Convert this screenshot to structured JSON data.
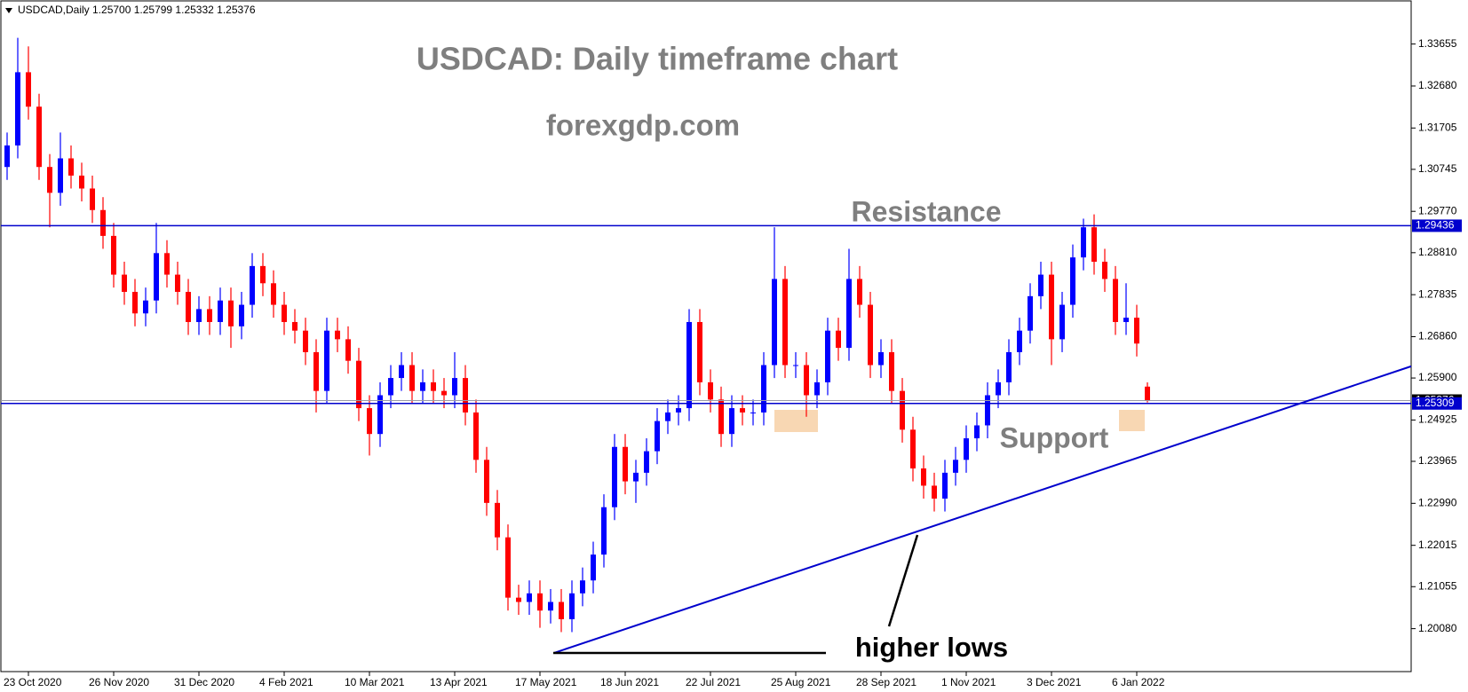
{
  "chart_data": {
    "type": "candlestick",
    "header": "USDCAD,Daily  1.25700 1.25799 1.25332 1.25376",
    "title": "USDCAD: Daily timeframe chart",
    "subtitle": "forexgdp.com",
    "annotations": {
      "resistance": "Resistance",
      "support": "Support",
      "trend": "higher lows"
    },
    "categories": [
      null,
      null,
      "23 Oct 2020",
      null,
      null,
      null,
      null,
      null,
      null,
      null,
      "26 Nov 2020",
      null,
      null,
      null,
      null,
      null,
      null,
      null,
      "31 Dec 2020",
      null,
      null,
      null,
      null,
      null,
      null,
      null,
      "4 Feb 2021",
      null,
      null,
      null,
      null,
      null,
      null,
      null,
      "10 Mar 2021",
      null,
      null,
      null,
      null,
      null,
      null,
      null,
      "13 Apr 2021",
      null,
      null,
      null,
      null,
      null,
      null,
      null,
      "17 May 2021",
      null,
      null,
      null,
      null,
      null,
      null,
      null,
      "18 Jun 2021",
      null,
      null,
      null,
      null,
      null,
      null,
      null,
      "22 Jul 2021",
      null,
      null,
      null,
      null,
      null,
      null,
      null,
      "25 Aug 2021",
      null,
      null,
      null,
      null,
      null,
      null,
      null,
      "28 Sep 2021",
      null,
      null,
      null,
      null,
      null,
      null,
      null,
      "1 Nov 2021",
      null,
      null,
      null,
      null,
      null,
      null,
      null,
      "3 Dec 2021",
      null,
      null,
      null,
      null,
      null,
      null,
      null,
      "6 Jan 2022",
      null
    ],
    "open": [
      1.308,
      1.313,
      1.33,
      1.322,
      1.308,
      1.302,
      1.31,
      1.306,
      1.303,
      1.298,
      1.292,
      1.283,
      1.279,
      1.274,
      1.277,
      1.288,
      1.283,
      1.279,
      1.272,
      1.275,
      1.272,
      1.277,
      1.271,
      1.276,
      1.285,
      1.281,
      1.276,
      1.272,
      1.27,
      1.265,
      1.256,
      1.27,
      1.268,
      1.263,
      1.252,
      1.246,
      1.255,
      1.259,
      1.262,
      1.256,
      1.258,
      1.256,
      1.255,
      1.259,
      1.251,
      1.24,
      1.23,
      1.222,
      1.208,
      1.207,
      1.209,
      1.205,
      1.207,
      1.203,
      1.209,
      1.212,
      1.218,
      1.229,
      1.243,
      1.235,
      1.237,
      1.242,
      1.249,
      1.251,
      1.252,
      1.272,
      1.258,
      1.254,
      1.246,
      1.252,
      1.251,
      1.251,
      1.262,
      1.282,
      1.262,
      1.262,
      1.255,
      1.258,
      1.27,
      1.266,
      1.282,
      1.276,
      1.262,
      1.265,
      1.256,
      1.247,
      1.238,
      1.234,
      1.231,
      1.237,
      1.24,
      1.245,
      1.248,
      1.255,
      1.258,
      1.265,
      1.27,
      1.278,
      1.283,
      1.268,
      1.276,
      1.287,
      1.294,
      1.286,
      1.282,
      1.272,
      1.273,
      1.257
    ],
    "high": [
      1.316,
      1.338,
      1.336,
      1.325,
      1.311,
      1.316,
      1.313,
      1.309,
      1.306,
      1.301,
      1.295,
      1.286,
      1.282,
      1.28,
      1.295,
      1.291,
      1.286,
      1.282,
      1.278,
      1.278,
      1.28,
      1.28,
      1.279,
      1.288,
      1.288,
      1.284,
      1.279,
      1.275,
      1.273,
      1.268,
      1.273,
      1.273,
      1.271,
      1.266,
      1.255,
      1.258,
      1.262,
      1.265,
      1.265,
      1.261,
      1.261,
      1.259,
      1.265,
      1.262,
      1.254,
      1.243,
      1.233,
      1.225,
      1.211,
      1.212,
      1.212,
      1.21,
      1.21,
      1.212,
      1.215,
      1.221,
      1.232,
      1.246,
      1.246,
      1.24,
      1.245,
      1.252,
      1.254,
      1.255,
      1.275,
      1.275,
      1.261,
      1.257,
      1.255,
      1.255,
      1.254,
      1.265,
      1.294,
      1.285,
      1.265,
      1.265,
      1.261,
      1.273,
      1.273,
      1.289,
      1.285,
      1.279,
      1.268,
      1.268,
      1.259,
      1.25,
      1.241,
      1.237,
      1.24,
      1.243,
      1.248,
      1.251,
      1.258,
      1.261,
      1.268,
      1.273,
      1.281,
      1.286,
      1.286,
      1.279,
      1.29,
      1.296,
      1.297,
      1.289,
      1.285,
      1.281,
      1.276,
      1.25799
    ],
    "low": [
      1.305,
      1.31,
      1.319,
      1.305,
      1.294,
      1.299,
      1.303,
      1.3,
      1.295,
      1.289,
      1.28,
      1.276,
      1.271,
      1.271,
      1.274,
      1.28,
      1.276,
      1.269,
      1.269,
      1.269,
      1.269,
      1.266,
      1.268,
      1.273,
      1.278,
      1.273,
      1.269,
      1.267,
      1.262,
      1.251,
      1.253,
      1.265,
      1.26,
      1.249,
      1.241,
      1.243,
      1.252,
      1.256,
      1.253,
      1.253,
      1.253,
      1.252,
      1.252,
      1.248,
      1.237,
      1.227,
      1.219,
      1.205,
      1.204,
      1.204,
      1.201,
      1.202,
      1.2,
      1.2,
      1.206,
      1.209,
      1.215,
      1.226,
      1.232,
      1.23,
      1.234,
      1.239,
      1.246,
      1.248,
      1.249,
      1.255,
      1.251,
      1.243,
      1.243,
      1.248,
      1.248,
      1.248,
      1.259,
      1.259,
      1.259,
      1.25,
      1.252,
      1.255,
      1.263,
      1.263,
      1.273,
      1.259,
      1.259,
      1.253,
      1.244,
      1.235,
      1.231,
      1.228,
      1.228,
      1.234,
      1.237,
      1.242,
      1.245,
      1.252,
      1.255,
      1.262,
      1.267,
      1.275,
      1.262,
      1.265,
      1.273,
      1.284,
      1.283,
      1.279,
      1.269,
      1.269,
      1.264,
      1.25332
    ],
    "close": [
      1.313,
      1.33,
      1.322,
      1.308,
      1.302,
      1.31,
      1.306,
      1.303,
      1.298,
      1.292,
      1.283,
      1.279,
      1.274,
      1.277,
      1.288,
      1.283,
      1.279,
      1.272,
      1.275,
      1.272,
      1.277,
      1.271,
      1.276,
      1.285,
      1.281,
      1.276,
      1.272,
      1.27,
      1.265,
      1.256,
      1.27,
      1.268,
      1.263,
      1.252,
      1.246,
      1.255,
      1.259,
      1.262,
      1.256,
      1.258,
      1.256,
      1.255,
      1.259,
      1.251,
      1.24,
      1.23,
      1.222,
      1.208,
      1.207,
      1.209,
      1.205,
      1.207,
      1.203,
      1.209,
      1.212,
      1.218,
      1.229,
      1.243,
      1.235,
      1.237,
      1.242,
      1.249,
      1.251,
      1.252,
      1.272,
      1.258,
      1.254,
      1.246,
      1.252,
      1.251,
      1.251,
      1.262,
      1.282,
      1.262,
      1.262,
      1.255,
      1.258,
      1.27,
      1.266,
      1.282,
      1.276,
      1.262,
      1.265,
      1.256,
      1.247,
      1.238,
      1.234,
      1.231,
      1.237,
      1.24,
      1.245,
      1.248,
      1.255,
      1.258,
      1.265,
      1.27,
      1.278,
      1.283,
      1.268,
      1.276,
      1.287,
      1.294,
      1.286,
      1.282,
      1.272,
      1.273,
      1.267,
      1.25376
    ],
    "up_color": "#0000ff",
    "down_color": "#ff0000",
    "ylim": [
      1.19083,
      1.34636
    ],
    "yticks": [
      1.33655,
      {
        "value": 1.3268,
        "label": "1.32680"
      },
      1.31705,
      1.30745,
      {
        "value": 1.2977,
        "label": "1.29770"
      },
      {
        "value": 1.2881,
        "label": "1.28810"
      },
      1.27835,
      {
        "value": 1.2686,
        "label": "1.26860"
      },
      {
        "value": 1.259,
        "label": "1.25900"
      },
      1.24925,
      1.23965,
      {
        "value": 1.2299,
        "label": "1.22990"
      },
      1.22015,
      1.21055,
      {
        "value": 1.2008,
        "label": "1.20080"
      }
    ],
    "levels": [
      {
        "value": 1.25376,
        "color": "#9a9aa8",
        "box": "#000000"
      },
      {
        "value": 1.29436,
        "color": "#0000cd",
        "box": "#0000cd"
      },
      {
        "value": 1.25309,
        "color": "#0000cd",
        "box": "#0000cd"
      }
    ],
    "trendline": {
      "values": [
        1.19515,
        1.26172
      ],
      "color": "#0000cd"
    },
    "grid": false
  }
}
